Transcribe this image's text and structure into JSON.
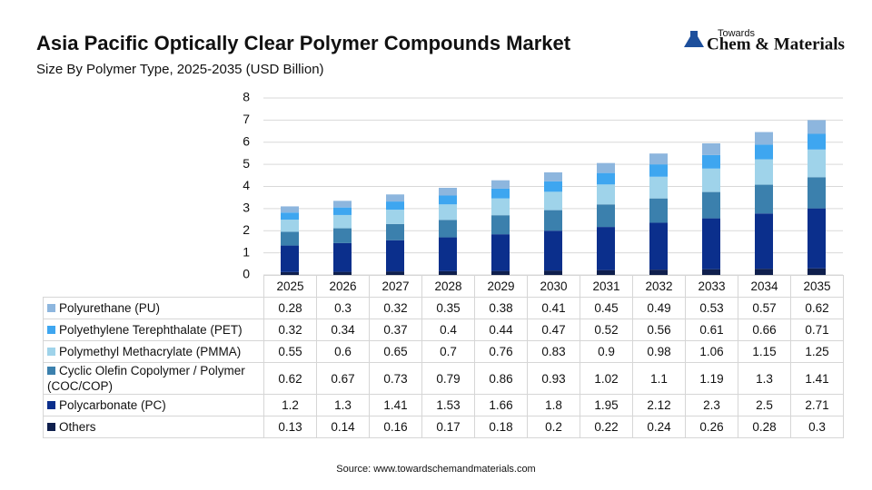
{
  "chart_data": {
    "type": "bar",
    "stacked": true,
    "title": "Asia Pacific Optically Clear Polymer Compounds Market",
    "subtitle": "Size By Polymer Type, 2025-2035 (USD Billion)",
    "logo": {
      "top": "Towards",
      "name": "Chem & Materials"
    },
    "source": "Source: www.towardschemandmaterials.com",
    "categories": [
      "2025",
      "2026",
      "2027",
      "2028",
      "2029",
      "2030",
      "2031",
      "2032",
      "2033",
      "2034",
      "2035"
    ],
    "series": [
      {
        "name": "Polyurethane (PU)",
        "color": "#8db6de",
        "values": [
          0.28,
          0.3,
          0.32,
          0.35,
          0.38,
          0.41,
          0.45,
          0.49,
          0.53,
          0.57,
          0.62
        ]
      },
      {
        "name": "Polyethylene Terephthalate (PET)",
        "color": "#3ea6f0",
        "values": [
          0.32,
          0.34,
          0.37,
          0.4,
          0.44,
          0.47,
          0.52,
          0.56,
          0.61,
          0.66,
          0.71
        ]
      },
      {
        "name": "Polymethyl Methacrylate (PMMA)",
        "color": "#9fd3ea",
        "values": [
          0.55,
          0.6,
          0.65,
          0.7,
          0.76,
          0.83,
          0.9,
          0.98,
          1.06,
          1.15,
          1.25
        ]
      },
      {
        "name": "Cyclic Olefin Copolymer / Polymer (COC/COP)",
        "color": "#3b80ad",
        "values": [
          0.62,
          0.67,
          0.73,
          0.79,
          0.86,
          0.93,
          1.02,
          1.1,
          1.19,
          1.3,
          1.41
        ]
      },
      {
        "name": "Polycarbonate (PC)",
        "color": "#0b2f8c",
        "values": [
          1.2,
          1.3,
          1.41,
          1.53,
          1.66,
          1.8,
          1.95,
          2.12,
          2.3,
          2.5,
          2.71
        ]
      },
      {
        "name": "Others",
        "color": "#0f1f4d",
        "values": [
          0.13,
          0.14,
          0.16,
          0.17,
          0.18,
          0.2,
          0.22,
          0.24,
          0.26,
          0.28,
          0.3
        ]
      }
    ],
    "ylim": [
      0,
      8
    ],
    "yticks": [
      0,
      1,
      2,
      3,
      4,
      5,
      6,
      7,
      8
    ],
    "grid": true
  }
}
